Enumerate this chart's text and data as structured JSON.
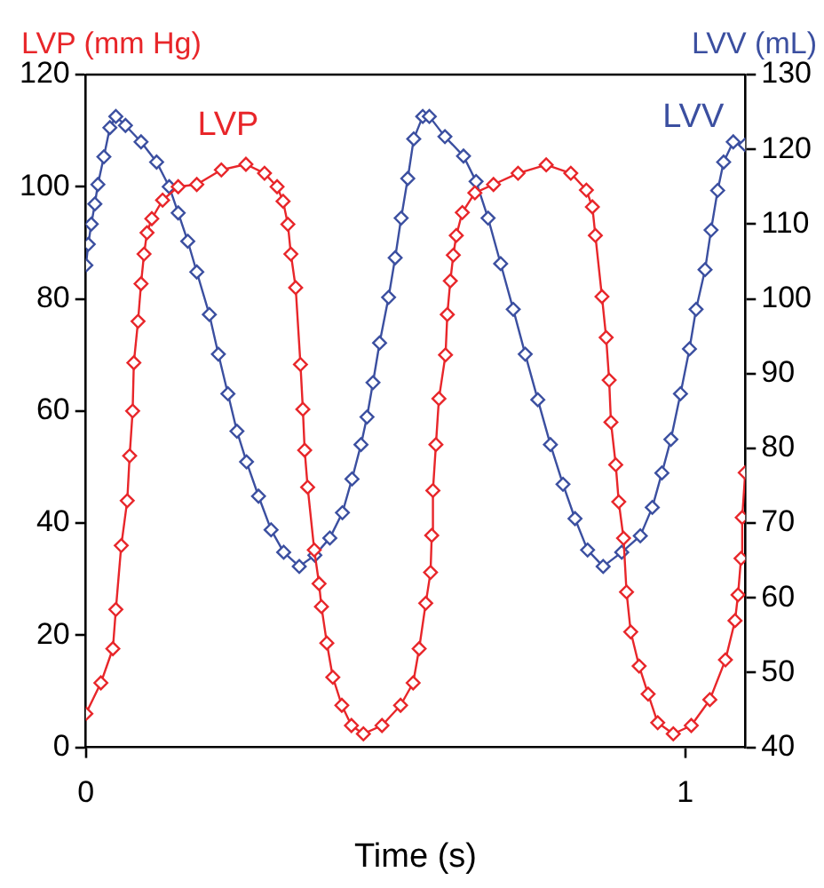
{
  "chart_data": {
    "type": "line",
    "xlabel": "Time (s)",
    "ylabel": "LVP (mm Hg)",
    "y2label": "LVV (mL)",
    "xlim": [
      0,
      1.1
    ],
    "xticks": [
      0,
      1
    ],
    "ylim": [
      0,
      120
    ],
    "yticks": [
      0,
      20,
      40,
      60,
      80,
      100,
      120
    ],
    "y2lim": [
      40,
      130
    ],
    "y2ticks": [
      40,
      50,
      60,
      70,
      80,
      90,
      100,
      110,
      120,
      130
    ],
    "grid": false,
    "legend": false,
    "marker": "diamond",
    "line_style": "solid",
    "series": [
      {
        "name": "LVP",
        "color": "#e8262a",
        "x": [
          0,
          0.025,
          0.045,
          0.05,
          0.059,
          0.069,
          0.073,
          0.078,
          0.08,
          0.087,
          0.092,
          0.097,
          0.102,
          0.11,
          0.128,
          0.154,
          0.185,
          0.226,
          0.267,
          0.298,
          0.319,
          0.329,
          0.337,
          0.342,
          0.35,
          0.358,
          0.362,
          0.365,
          0.37,
          0.381,
          0.389,
          0.393,
          0.402,
          0.412,
          0.427,
          0.443,
          0.463,
          0.494,
          0.525,
          0.546,
          0.556,
          0.567,
          0.575,
          0.577,
          0.579,
          0.584,
          0.589,
          0.6,
          0.603,
          0.608,
          0.613,
          0.618,
          0.628,
          0.649,
          0.68,
          0.721,
          0.768,
          0.809,
          0.835,
          0.845,
          0.85,
          0.861,
          0.868,
          0.873,
          0.876,
          0.884,
          0.889,
          0.897,
          0.902,
          0.909,
          0.923,
          0.938,
          0.954,
          0.98,
          1.01,
          1.041,
          1.067,
          1.083,
          1.088,
          1.093,
          1.095,
          1.1
        ],
        "values": [
          6,
          11.5,
          17.6,
          24.6,
          36,
          44,
          52,
          60,
          68.6,
          76,
          82.7,
          88,
          91.8,
          94.3,
          97.6,
          100,
          100.4,
          103,
          104,
          102.4,
          100,
          97.4,
          93.3,
          88,
          82,
          68.3,
          60.3,
          53,
          46.4,
          35.2,
          29.2,
          25.1,
          18.6,
          12.5,
          7.5,
          3.9,
          2.4,
          3.9,
          7.5,
          11.5,
          17.6,
          25.7,
          31.2,
          37.8,
          45.8,
          54,
          62.2,
          70,
          77.2,
          83.2,
          87.8,
          91.3,
          95.4,
          98.9,
          100.4,
          102.4,
          103.9,
          102.4,
          99.4,
          96.4,
          91.3,
          80.4,
          73.1,
          65.5,
          58,
          50.4,
          43.8,
          37.3,
          27.7,
          20.6,
          14.5,
          9.5,
          4.4,
          2.4,
          3.9,
          8.5,
          15.6,
          22.6,
          27.2,
          33.7,
          41,
          49
        ]
      },
      {
        "name": "LVV",
        "color": "#3b4fa0",
        "axis": "y2",
        "x": [
          0,
          0.004,
          0.009,
          0.015,
          0.02,
          0.03,
          0.04,
          0.05,
          0.066,
          0.092,
          0.118,
          0.139,
          0.154,
          0.17,
          0.185,
          0.206,
          0.221,
          0.237,
          0.252,
          0.268,
          0.288,
          0.309,
          0.33,
          0.356,
          0.382,
          0.407,
          0.428,
          0.444,
          0.459,
          0.469,
          0.479,
          0.49,
          0.505,
          0.516,
          0.526,
          0.537,
          0.547,
          0.562,
          0.573,
          0.599,
          0.63,
          0.651,
          0.671,
          0.692,
          0.713,
          0.733,
          0.754,
          0.775,
          0.796,
          0.816,
          0.837,
          0.863,
          0.894,
          0.925,
          0.945,
          0.961,
          0.976,
          0.992,
          1.007,
          1.018,
          1.033,
          1.043,
          1.054,
          1.064,
          1.08,
          1.1
        ],
        "values": [
          104.5,
          107.3,
          110,
          112.7,
          115.3,
          119,
          122.9,
          124.4,
          123.2,
          121,
          118.3,
          115,
          111.5,
          107.7,
          103.6,
          97.9,
          92.6,
          87.3,
          82.3,
          78.2,
          73.6,
          69.1,
          66.1,
          64.2,
          65.7,
          68,
          71.4,
          75.9,
          80.5,
          84.2,
          88.8,
          94.1,
          100.2,
          105.5,
          110.8,
          116.1,
          121.4,
          124.4,
          124.4,
          121.7,
          119.1,
          115.7,
          110.8,
          104.7,
          98.6,
          92.6,
          86.5,
          80.5,
          75.2,
          70.6,
          66.4,
          64.2,
          66.1,
          68.3,
          72.1,
          76.7,
          81.2,
          87.3,
          93.3,
          98.6,
          103.9,
          109.2,
          114.5,
          118.3,
          121,
          120.6
        ]
      }
    ]
  }
}
